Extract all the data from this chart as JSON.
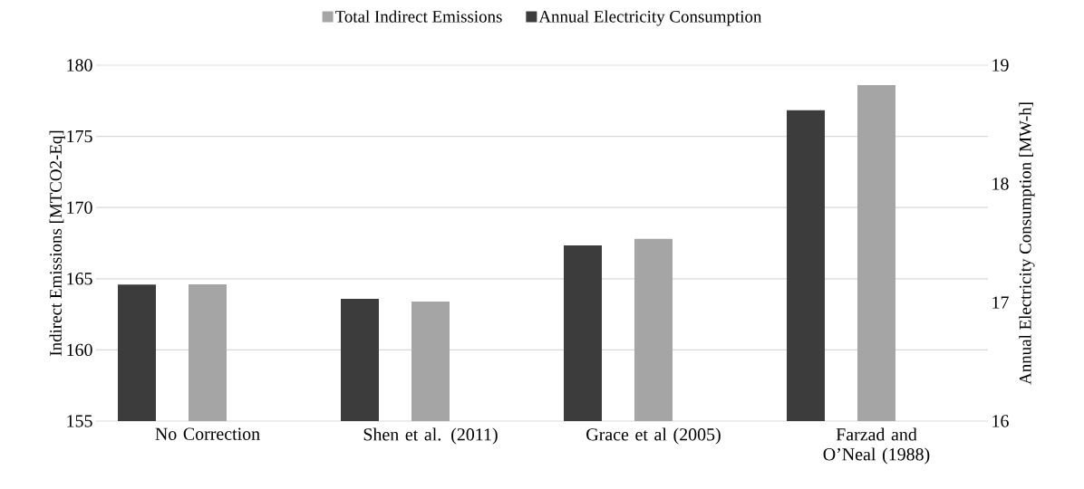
{
  "chart_data": {
    "type": "bar",
    "ylabel": "Indirect Emissions [MTCO2-Eq]",
    "y2label": "Annual Electricity Consumption [MW-h]",
    "categories": [
      "No Correction",
      "Shen et al. (2011)",
      "Grace et al (2005)",
      "Farzad and O’Neal (1988)"
    ],
    "series": [
      {
        "name": "Total Indirect Emissions",
        "color": "#a5a5a5",
        "values": [
          164.6,
          163.4,
          167.8,
          178.6
        ]
      },
      {
        "name": "Annual Electricity Consumption",
        "color": "#3c3c3c",
        "axis": "y2",
        "values": [
          17.15,
          17.03,
          17.48,
          18.62
        ]
      }
    ],
    "ylim": [
      155,
      180
    ],
    "yticks": [
      155,
      160,
      165,
      170,
      175,
      180
    ],
    "y2lim": [
      16,
      19
    ],
    "y2ticks": [
      16,
      17,
      18,
      19
    ],
    "grid": "y",
    "legend": "top"
  }
}
